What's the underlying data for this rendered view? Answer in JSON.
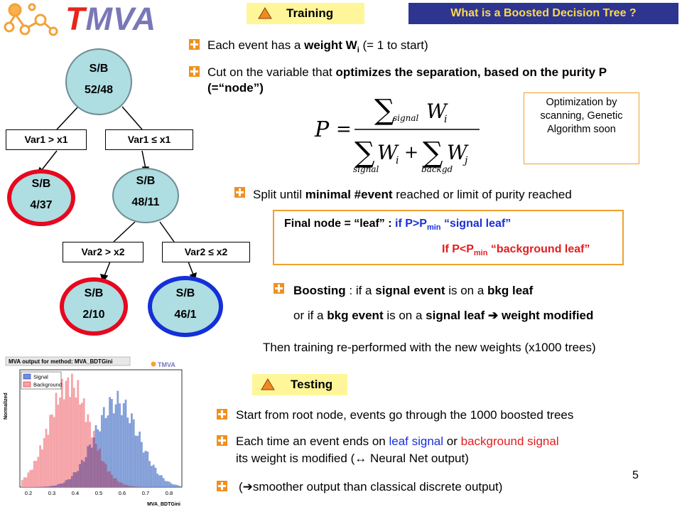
{
  "logo": {
    "t": "T",
    "mva": "MVA"
  },
  "header": {
    "training_tab": "Training",
    "title": "What is a Boosted Decision Tree ?",
    "testing_tab": "Testing"
  },
  "tree": {
    "root": {
      "label": "S/B",
      "value": "52/48"
    },
    "cut1_left": "Var1 > x1",
    "cut1_right": "Var1 ≤ x1",
    "node_left": {
      "label": "S/B",
      "value": "4/37"
    },
    "node_right": {
      "label": "S/B",
      "value": "48/11"
    },
    "cut2_left": "Var2 > x2",
    "cut2_right": "Var2 ≤ x2",
    "leaf_left": {
      "label": "S/B",
      "value": "2/10"
    },
    "leaf_right": {
      "label": "S/B",
      "value": "46/1"
    }
  },
  "bullets": {
    "b1_pre": "Each event has a ",
    "b1_bold": "weight W",
    "b1_sub": "i",
    "b1_post": " (= 1 to start)",
    "b2_pre": "Cut on the variable that ",
    "b2_bold": "optimizes the separation, based on the purity P (=“node”)",
    "b3_pre": "Split until ",
    "b3_bold1": "minimal #event",
    "b3_mid": " reached or limit of purity reached",
    "b4_bold1": "Boosting",
    "b4_t1": " : if a ",
    "b4_bold2": "signal event",
    "b4_t2": " is on a ",
    "b4_bold3": "bkg leaf",
    "b4_line2_t1": "or if a ",
    "b4_line2_bold1": "bkg event",
    "b4_line2_t2": " is on a ",
    "b4_line2_bold2": "signal leaf",
    "b4_arrow": "➔",
    "b4_line2_bold3": " weight modified",
    "retrain": "Then training re-performed with the new weights (x1000 trees)",
    "t1": "Start from root node, events go through the 1000 boosted trees",
    "t2_pre": "Each time an event ends on ",
    "t2_blue": "leaf signal",
    "t2_mid": " or ",
    "t2_red": "background signal",
    "t2_line2": "its weight is modified (↔ Neural Net output)",
    "t3_open": "(",
    "t3_arrow": "➔",
    "t3_rest": "smoother output than classical discrete output)"
  },
  "formula": {
    "P": "P",
    "eq": "=",
    "sum": "∑",
    "W": "W",
    "i": "i",
    "j": "j",
    "plus": "+",
    "signal": "signal",
    "backgd": "backgd"
  },
  "optimization_box": "Optimization by scanning, Genetic Algorithm soon",
  "leaf_box": {
    "line1_pre": "Final node = “leaf” : ",
    "line1_if": "if P>P",
    "line1_sub": "min",
    "line1_post": " “signal leaf”",
    "line2_if": "If P<P",
    "line2_sub": "min",
    "line2_post": " “background leaf”"
  },
  "page_number": "5",
  "histogram": {
    "title": "MVA output for method: MVA_BDTGini",
    "logo": "TMVA",
    "legend": [
      "Signal",
      "Background"
    ],
    "ylabel": "Normalized",
    "xlabel": "MVA_BDTGini",
    "xticks": [
      "0.2",
      "0.3",
      "0.4",
      "0.5",
      "0.6",
      "0.7",
      "0.8"
    ],
    "colors": {
      "signal": "#6f8fd2",
      "background": "#f5a4a8",
      "overlap": "#9a6b9a"
    }
  }
}
